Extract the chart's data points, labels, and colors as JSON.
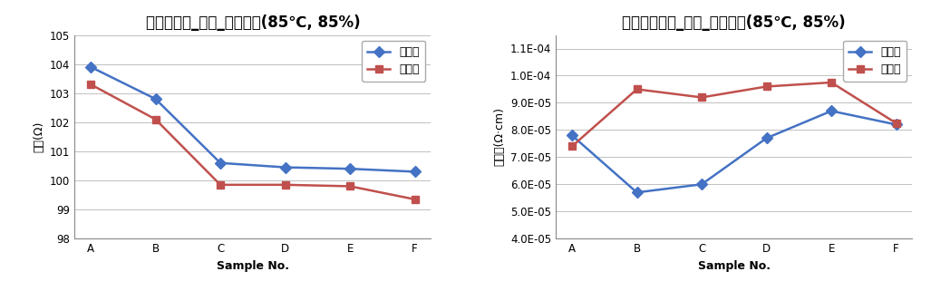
{
  "chart1": {
    "title": "저항균일도_단품_항온항습(85℃, 85%)",
    "xlabel": "Sample No.",
    "ylabel": "저항(Ω)",
    "categories": [
      "A",
      "B",
      "C",
      "D",
      "E",
      "F"
    ],
    "series": [
      {
        "label": "시험전",
        "color": "#4472C4",
        "marker": "D",
        "values": [
          103.9,
          102.8,
          100.6,
          100.45,
          100.4,
          100.3
        ]
      },
      {
        "label": "시험후",
        "color": "#C0504D",
        "marker": "s",
        "values": [
          103.3,
          102.1,
          99.85,
          99.85,
          99.8,
          99.35
        ]
      }
    ],
    "ylim": [
      98,
      105
    ],
    "yticks": [
      98,
      99,
      100,
      101,
      102,
      103,
      104,
      105
    ]
  },
  "chart2": {
    "title": "비저항균일도_단품_항온항습(85℃, 85%)",
    "xlabel": "Sample No.",
    "ylabel": "비저항(Ω·cm)",
    "categories": [
      "A",
      "B",
      "C",
      "D",
      "E",
      "F"
    ],
    "series": [
      {
        "label": "시험전",
        "color": "#4472C4",
        "marker": "D",
        "values": [
          7.8e-05,
          5.7e-05,
          6e-05,
          7.7e-05,
          8.7e-05,
          8.2e-05
        ]
      },
      {
        "label": "시험후",
        "color": "#C0504D",
        "marker": "s",
        "values": [
          7.4e-05,
          9.5e-05,
          9.2e-05,
          9.6e-05,
          9.75e-05,
          8.25e-05
        ]
      }
    ],
    "ylim": [
      4e-05,
      0.000115
    ],
    "yticks": [
      4e-05,
      5e-05,
      6e-05,
      7e-05,
      8e-05,
      9e-05,
      0.0001,
      0.00011
    ]
  },
  "bg_color": "#FFFFFF",
  "plot_bg_color": "#FFFFFF",
  "grid_color": "#C0C0C0",
  "title_fontsize": 12,
  "label_fontsize": 9,
  "tick_fontsize": 8.5,
  "legend_fontsize": 9,
  "line_width": 1.8,
  "marker_size": 6
}
